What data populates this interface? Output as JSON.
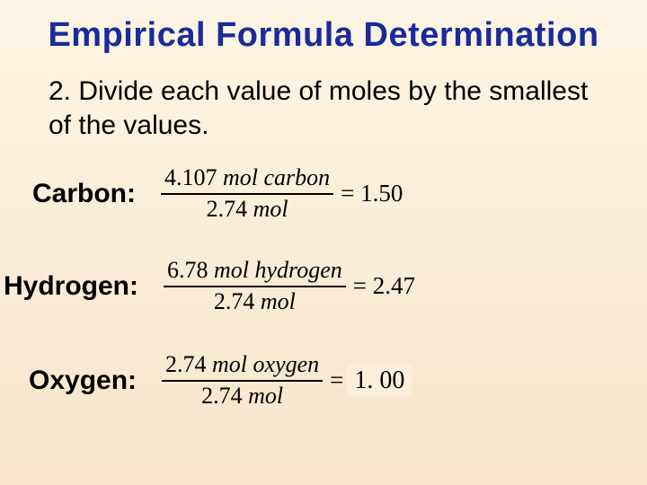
{
  "title": "Empirical Formula Determination",
  "instruction": "2. Divide each value of moles by the smallest of the values.",
  "rows": {
    "carbon": {
      "label": "Carbon:",
      "numer_val": "4.107",
      "numer_unit": "mol carbon",
      "denom_val": "2.74",
      "denom_unit": "mol",
      "result": "= 1.50"
    },
    "hydrogen": {
      "label": "Hydrogen:",
      "numer_val": "6.78",
      "numer_unit": "mol hydrogen",
      "denom_val": "2.74",
      "denom_unit": "mol",
      "result": "= 2.47"
    },
    "oxygen": {
      "label": "Oxygen:",
      "numer_val": "2.74",
      "numer_unit": "mol oxygen",
      "denom_val": "2.74",
      "denom_unit": "mol",
      "eq": "=",
      "result": "1. 00"
    }
  },
  "colors": {
    "title": "#1a2b9c",
    "text": "#000000",
    "bg_top": "#fdf5e4",
    "bg_bottom": "#f7e6c9",
    "oxygen_box_bg": "#fbefdb"
  },
  "fonts": {
    "body": "Comic Sans MS",
    "math": "Times New Roman",
    "title_size_pt": 29,
    "instruction_size_pt": 23,
    "label_size_pt": 23,
    "math_size_pt": 20
  }
}
